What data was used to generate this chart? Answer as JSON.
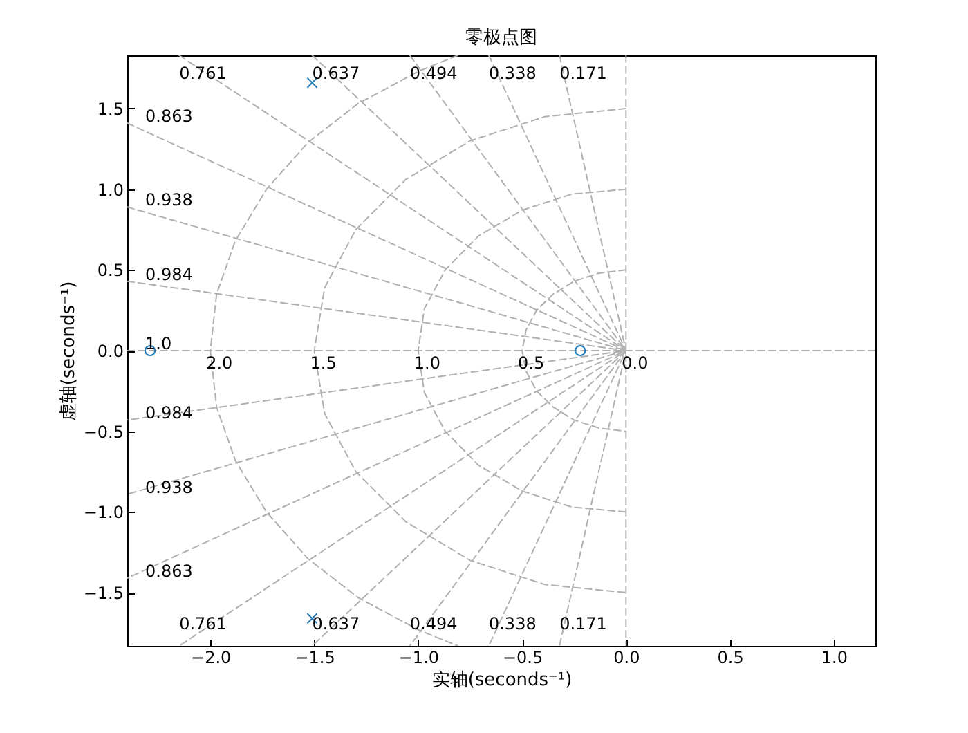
{
  "chart_data": {
    "type": "scatter",
    "title": "零极点图",
    "xlabel": "实轴(seconds⁻¹)",
    "ylabel": "虚轴(seconds⁻¹)",
    "xlim": [
      -2.4,
      1.2
    ],
    "ylim": [
      -1.83,
      1.83
    ],
    "xticks": [
      {
        "value": -2,
        "label": "−2.0"
      },
      {
        "value": -1.5,
        "label": "−1.5"
      },
      {
        "value": -1,
        "label": "−1.0"
      },
      {
        "value": -0.5,
        "label": "−0.5"
      },
      {
        "value": 0,
        "label": "0.0"
      },
      {
        "value": 0.5,
        "label": "0.5"
      },
      {
        "value": 1,
        "label": "1.0"
      }
    ],
    "yticks": [
      {
        "value": -1.5,
        "label": "−1.5"
      },
      {
        "value": -1,
        "label": "−1.0"
      },
      {
        "value": -0.5,
        "label": "−0.5"
      },
      {
        "value": 0,
        "label": "0.0"
      },
      {
        "value": 0.5,
        "label": "0.5"
      },
      {
        "value": 1,
        "label": "1.0"
      },
      {
        "value": 1.5,
        "label": "1.5"
      }
    ],
    "line_style": "dashed",
    "series": [
      {
        "type": "line",
        "color": "#b0b0b0",
        "x": [
          -0.32,
          0,
          -0.32
        ],
        "values": [
          1.83,
          0,
          -1.83
        ]
      },
      {
        "type": "line",
        "color": "#b0b0b0",
        "x": [
          -0.66,
          0,
          -0.66
        ],
        "values": [
          1.83,
          0,
          -1.83
        ]
      },
      {
        "type": "line",
        "color": "#b0b0b0",
        "x": [
          -1.04,
          0,
          -1.04
        ],
        "values": [
          1.83,
          0,
          -1.83
        ]
      },
      {
        "type": "line",
        "color": "#b0b0b0",
        "x": [
          -1.51,
          0,
          -1.51
        ],
        "values": [
          1.83,
          0,
          -1.83
        ]
      },
      {
        "type": "line",
        "color": "#b0b0b0",
        "x": [
          -2.15,
          0,
          -2.15
        ],
        "values": [
          1.83,
          0,
          -1.83
        ]
      },
      {
        "type": "line",
        "color": "#b0b0b0",
        "x": [
          -2.4,
          0,
          -2.4
        ],
        "values": [
          1.41,
          0,
          -1.41
        ]
      },
      {
        "type": "line",
        "color": "#b0b0b0",
        "x": [
          -2.4,
          0,
          -2.4
        ],
        "values": [
          0.89,
          0,
          -0.89
        ]
      },
      {
        "type": "line",
        "color": "#b0b0b0",
        "x": [
          -2.4,
          0,
          -2.4
        ],
        "values": [
          0.43,
          0,
          -0.43
        ]
      },
      {
        "type": "line",
        "color": "#b0b0b0",
        "x": [
          -2.4,
          1.2
        ],
        "values": [
          0,
          0
        ]
      },
      {
        "type": "line",
        "color": "#b0b0b0",
        "x": [
          0,
          0
        ],
        "values": [
          1.83,
          -1.83
        ]
      },
      {
        "type": "line",
        "color": "#b0b0b0",
        "x": [
          -0.81,
          -1,
          -1.29,
          -1.53,
          -1.73,
          -1.88,
          -1.97,
          -2,
          -1.97,
          -1.88,
          -1.73,
          -1.53,
          -1.29,
          -1,
          -0.81
        ],
        "values": [
          1.83,
          1.73,
          1.53,
          1.29,
          1,
          0.68,
          0.35,
          0,
          -0.35,
          -0.68,
          -1,
          -1.29,
          -1.53,
          -1.73,
          -1.83
        ]
      },
      {
        "type": "line",
        "color": "#b0b0b0",
        "x": [
          0,
          -0.39,
          -0.75,
          -1.06,
          -1.3,
          -1.45,
          -1.5,
          -1.45,
          -1.3,
          -1.06,
          -0.75,
          -0.39,
          0
        ],
        "values": [
          1.5,
          1.45,
          1.3,
          1.06,
          0.75,
          0.39,
          0,
          -0.39,
          -0.75,
          -1.06,
          -1.3,
          -1.45,
          -1.5
        ]
      },
      {
        "type": "line",
        "color": "#b0b0b0",
        "x": [
          0,
          -0.26,
          -0.5,
          -0.71,
          -0.87,
          -0.97,
          -1,
          -0.97,
          -0.87,
          -0.71,
          -0.5,
          -0.26,
          0
        ],
        "values": [
          1,
          0.97,
          0.87,
          0.71,
          0.5,
          0.26,
          0,
          -0.26,
          -0.5,
          -0.71,
          -0.87,
          -0.97,
          -1
        ]
      },
      {
        "type": "line",
        "color": "#b0b0b0",
        "x": [
          0,
          -0.13,
          -0.25,
          -0.35,
          -0.43,
          -0.48,
          -0.5,
          -0.48,
          -0.43,
          -0.35,
          -0.25,
          -0.13,
          0
        ],
        "values": [
          0.5,
          0.48,
          0.43,
          0.35,
          0.25,
          0.13,
          0,
          -0.13,
          -0.25,
          -0.35,
          -0.43,
          -0.48,
          -0.5
        ]
      },
      {
        "color": "#1f77b4",
        "marker": "circle",
        "x": [
          -2.29,
          -0.22
        ],
        "values": [
          0,
          0
        ]
      },
      {
        "color": "#1f77b4",
        "marker": "cross",
        "x": [
          -1.51,
          -1.51
        ],
        "values": [
          1.66,
          -1.66
        ]
      }
    ],
    "annotations": [
      {
        "text": "0.761",
        "x": -2.15,
        "y": 1.83
      },
      {
        "text": "0.637",
        "x": -1.51,
        "y": 1.83
      },
      {
        "text": "0.494",
        "x": -1.04,
        "y": 1.83
      },
      {
        "text": "0.338",
        "x": -0.66,
        "y": 1.83
      },
      {
        "text": "0.171",
        "x": -0.32,
        "y": 1.83
      },
      {
        "text": "0.863",
        "x": -2.4,
        "y": 1.41
      },
      {
        "text": "0.938",
        "x": -2.4,
        "y": 0.89
      },
      {
        "text": "0.984",
        "x": -2.4,
        "y": 0.43
      },
      {
        "text": "1.0",
        "x": -2.4,
        "y": 0
      },
      {
        "text": "0.984",
        "x": -2.4,
        "y": -0.43
      },
      {
        "text": "0.938",
        "x": -2.4,
        "y": -0.89
      },
      {
        "text": "0.863",
        "x": -2.4,
        "y": -1.41
      },
      {
        "text": "0.761",
        "x": -2.15,
        "y": -1.83
      },
      {
        "text": "0.637",
        "x": -1.51,
        "y": -1.83
      },
      {
        "text": "0.494",
        "x": -1.04,
        "y": -1.83
      },
      {
        "text": "0.338",
        "x": -0.66,
        "y": -1.83
      },
      {
        "text": "0.171",
        "x": -0.32,
        "y": -1.83
      },
      {
        "text": "2.0",
        "x": -2,
        "y": 0
      },
      {
        "text": "1.5",
        "x": -1.5,
        "y": 0
      },
      {
        "text": "1.0",
        "x": -1,
        "y": 0
      },
      {
        "text": "0.5",
        "x": -0.5,
        "y": 0
      },
      {
        "text": "0.0",
        "x": 0,
        "y": 0
      }
    ]
  }
}
